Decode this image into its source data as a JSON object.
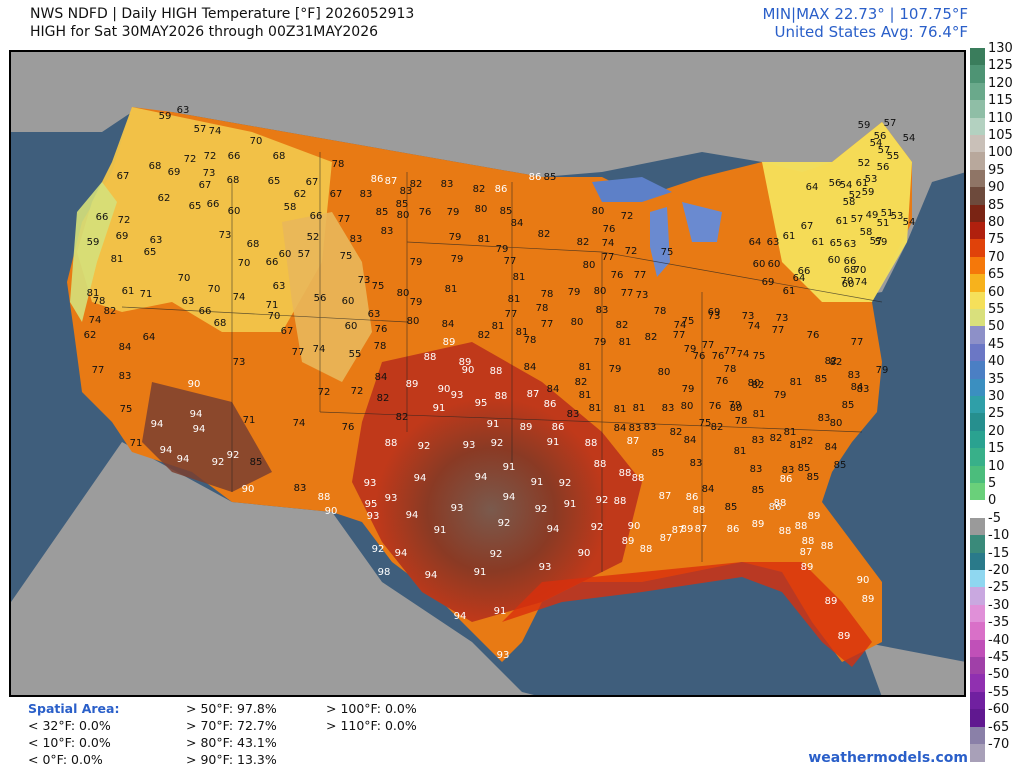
{
  "header": {
    "line1": "NWS NDFD | Daily HIGH Temperature [°F]  2026052913",
    "line2": "HIGH for Sat 30MAY2026 through 00Z31MAY2026",
    "minmax": "MIN|MAX 22.73° | 107.75°F",
    "avg": "United States Avg: 76.4°F"
  },
  "legend": {
    "ticks": [
      "130",
      "125",
      "120",
      "115",
      "110",
      "105",
      "100",
      "95",
      "90",
      "85",
      "80",
      "75",
      "70",
      "65",
      "60",
      "55",
      "50",
      "45",
      "40",
      "35",
      "30",
      "25",
      "20",
      "15",
      "10",
      "5",
      "0",
      "-5",
      "-10",
      "-15",
      "-20",
      "-25",
      "-30",
      "-35",
      "-40",
      "-45",
      "-50",
      "-55",
      "-60",
      "-65",
      "-70"
    ],
    "colors": [
      "#3a7d5c",
      "#4e9474",
      "#6aa98b",
      "#8fbea6",
      "#b3d1c0",
      "#c9c0b8",
      "#b8a89c",
      "#8f7566",
      "#6d4a3c",
      "#7a2414",
      "#b0200e",
      "#e0420a",
      "#f5780a",
      "#f7b21c",
      "#f5e05a",
      "#d9e07c",
      "#8d90c8",
      "#6b77c5",
      "#4b7fc4",
      "#3b8fc0",
      "#2f9fa8",
      "#268f8e",
      "#2aa290",
      "#38b089",
      "#4bbd7c",
      "#6ad07a",
      "#ffffff",
      "#9a9a9a",
      "#3a8a7a",
      "#2a7a8a",
      "#8fd7f0",
      "#c9a8e0",
      "#e090d8",
      "#d970c8",
      "#c050b8",
      "#a040a8",
      "#9030b0",
      "#7020a0",
      "#601890",
      "#8a80a8",
      "#a8a0b8"
    ]
  },
  "stats": {
    "title": "Spatial Area:",
    "col1": [
      "< 32°F: 0.0%",
      "< 10°F: 0.0%",
      "< 0°F: 0.0%"
    ],
    "col2": [
      "> 50°F: 97.8%",
      "> 70°F: 72.7%",
      "> 80°F: 43.1%",
      "> 90°F: 13.3%"
    ],
    "col3": [
      "> 100°F: 0.0%",
      "> 110°F: 0.0%"
    ]
  },
  "credit": "weathermodels.com",
  "map_labels": [
    [
      "59",
      163,
      117
    ],
    [
      "63",
      181,
      111
    ],
    [
      "74",
      213,
      132
    ],
    [
      "70",
      254,
      142
    ],
    [
      "57",
      198,
      130
    ],
    [
      "72",
      188,
      160
    ],
    [
      "72",
      208,
      157
    ],
    [
      "66",
      232,
      157
    ],
    [
      "68",
      277,
      157
    ],
    [
      "78",
      336,
      165
    ],
    [
      "86",
      375,
      180
    ],
    [
      "87",
      389,
      182
    ],
    [
      "82",
      414,
      185
    ],
    [
      "83",
      445,
      185
    ],
    [
      "82",
      477,
      190
    ],
    [
      "86",
      499,
      190
    ],
    [
      "86",
      533,
      178
    ],
    [
      "85",
      548,
      178
    ],
    [
      "68",
      153,
      167
    ],
    [
      "69",
      172,
      173
    ],
    [
      "67",
      203,
      186
    ],
    [
      "67",
      121,
      177
    ],
    [
      "73",
      207,
      174
    ],
    [
      "68",
      231,
      181
    ],
    [
      "65",
      272,
      182
    ],
    [
      "67",
      310,
      183
    ],
    [
      "67",
      334,
      195
    ],
    [
      "83",
      364,
      195
    ],
    [
      "83",
      404,
      192
    ],
    [
      "85",
      400,
      205
    ],
    [
      "80",
      401,
      216
    ],
    [
      "76",
      423,
      213
    ],
    [
      "79",
      451,
      213
    ],
    [
      "80",
      479,
      210
    ],
    [
      "85",
      504,
      212
    ],
    [
      "84",
      515,
      224
    ],
    [
      "62",
      162,
      199
    ],
    [
      "65",
      193,
      207
    ],
    [
      "66",
      211,
      205
    ],
    [
      "60",
      232,
      212
    ],
    [
      "58",
      288,
      208
    ],
    [
      "62",
      298,
      195
    ],
    [
      "66",
      314,
      217
    ],
    [
      "77",
      342,
      220
    ],
    [
      "85",
      380,
      213
    ],
    [
      "83",
      385,
      232
    ],
    [
      "79",
      453,
      238
    ],
    [
      "81",
      482,
      240
    ],
    [
      "79",
      500,
      250
    ],
    [
      "77",
      508,
      262
    ],
    [
      "82",
      542,
      235
    ],
    [
      "82",
      581,
      243
    ],
    [
      "76",
      607,
      230
    ],
    [
      "80",
      596,
      212
    ],
    [
      "72",
      625,
      217
    ],
    [
      "66",
      100,
      218
    ],
    [
      "72",
      122,
      221
    ],
    [
      "69",
      120,
      237
    ],
    [
      "63",
      154,
      241
    ],
    [
      "73",
      223,
      236
    ],
    [
      "68",
      251,
      245
    ],
    [
      "65",
      148,
      253
    ],
    [
      "52",
      311,
      238
    ],
    [
      "57",
      302,
      255
    ],
    [
      "60",
      283,
      255
    ],
    [
      "75",
      344,
      257
    ],
    [
      "83",
      354,
      240
    ],
    [
      "79",
      414,
      263
    ],
    [
      "79",
      455,
      260
    ],
    [
      "81",
      517,
      278
    ],
    [
      "80",
      587,
      266
    ],
    [
      "74",
      606,
      244
    ],
    [
      "77",
      606,
      258
    ],
    [
      "72",
      629,
      252
    ],
    [
      "59",
      91,
      243
    ],
    [
      "81",
      115,
      260
    ],
    [
      "70",
      182,
      279
    ],
    [
      "70",
      242,
      264
    ],
    [
      "66",
      270,
      263
    ],
    [
      "73",
      362,
      281
    ],
    [
      "75",
      376,
      287
    ],
    [
      "81",
      449,
      290
    ],
    [
      "78",
      545,
      295
    ],
    [
      "79",
      572,
      293
    ],
    [
      "80",
      598,
      292
    ],
    [
      "77",
      625,
      294
    ],
    [
      "76",
      615,
      276
    ],
    [
      "77",
      638,
      276
    ],
    [
      "73",
      640,
      296
    ],
    [
      "75",
      665,
      253
    ],
    [
      "81",
      91,
      294
    ],
    [
      "61",
      126,
      292
    ],
    [
      "71",
      144,
      295
    ],
    [
      "63",
      186,
      302
    ],
    [
      "70",
      212,
      290
    ],
    [
      "74",
      237,
      298
    ],
    [
      "63",
      277,
      287
    ],
    [
      "56",
      318,
      299
    ],
    [
      "60",
      346,
      302
    ],
    [
      "80",
      401,
      294
    ],
    [
      "79",
      414,
      303
    ],
    [
      "81",
      512,
      300
    ],
    [
      "77",
      509,
      315
    ],
    [
      "78",
      540,
      309
    ],
    [
      "80",
      575,
      323
    ],
    [
      "83",
      600,
      311
    ],
    [
      "82",
      620,
      326
    ],
    [
      "78",
      97,
      302
    ],
    [
      "82",
      108,
      312
    ],
    [
      "74",
      93,
      321
    ],
    [
      "66",
      203,
      312
    ],
    [
      "68",
      218,
      324
    ],
    [
      "71",
      270,
      306
    ],
    [
      "70",
      272,
      317
    ],
    [
      "63",
      372,
      315
    ],
    [
      "80",
      411,
      322
    ],
    [
      "84",
      446,
      325
    ],
    [
      "82",
      482,
      336
    ],
    [
      "81",
      520,
      333
    ],
    [
      "77",
      545,
      325
    ],
    [
      "81",
      496,
      327
    ],
    [
      "78",
      658,
      312
    ],
    [
      "75",
      686,
      322
    ],
    [
      "74",
      678,
      326
    ],
    [
      "69",
      712,
      313
    ],
    [
      "73",
      712,
      317
    ],
    [
      "62",
      88,
      336
    ],
    [
      "84",
      123,
      348
    ],
    [
      "64",
      147,
      338
    ],
    [
      "67",
      285,
      332
    ],
    [
      "60",
      349,
      327
    ],
    [
      "76",
      379,
      330
    ],
    [
      "89",
      447,
      343
    ],
    [
      "78",
      528,
      341
    ],
    [
      "79",
      598,
      343
    ],
    [
      "81",
      623,
      343
    ],
    [
      "82",
      649,
      338
    ],
    [
      "77",
      677,
      336
    ],
    [
      "79",
      688,
      350
    ],
    [
      "77",
      706,
      346
    ],
    [
      "73",
      746,
      317
    ],
    [
      "69",
      766,
      283
    ],
    [
      "61",
      787,
      292
    ],
    [
      "66",
      802,
      272
    ],
    [
      "77",
      96,
      371
    ],
    [
      "83",
      123,
      377
    ],
    [
      "77",
      296,
      353
    ],
    [
      "74",
      317,
      350
    ],
    [
      "55",
      353,
      355
    ],
    [
      "78",
      378,
      347
    ],
    [
      "88",
      428,
      358
    ],
    [
      "89",
      463,
      363
    ],
    [
      "90",
      466,
      371
    ],
    [
      "88",
      494,
      372
    ],
    [
      "84",
      528,
      368
    ],
    [
      "81",
      583,
      368
    ],
    [
      "79",
      613,
      370
    ],
    [
      "80",
      662,
      373
    ],
    [
      "76",
      697,
      357
    ],
    [
      "76",
      716,
      357
    ],
    [
      "77",
      728,
      352
    ],
    [
      "74",
      741,
      355
    ],
    [
      "75",
      757,
      357
    ],
    [
      "90",
      192,
      385
    ],
    [
      "73",
      237,
      363
    ],
    [
      "72",
      322,
      393
    ],
    [
      "72",
      355,
      392
    ],
    [
      "84",
      379,
      378
    ],
    [
      "89",
      410,
      385
    ],
    [
      "90",
      442,
      390
    ],
    [
      "93",
      455,
      396
    ],
    [
      "95",
      479,
      404
    ],
    [
      "88",
      499,
      397
    ],
    [
      "87",
      531,
      395
    ],
    [
      "84",
      551,
      390
    ],
    [
      "82",
      579,
      383
    ],
    [
      "81",
      583,
      396
    ],
    [
      "79",
      686,
      390
    ],
    [
      "76",
      720,
      382
    ],
    [
      "78",
      728,
      370
    ],
    [
      "80",
      752,
      384
    ],
    [
      "81",
      794,
      383
    ],
    [
      "75",
      124,
      410
    ],
    [
      "94",
      194,
      415
    ],
    [
      "71",
      247,
      421
    ],
    [
      "74",
      297,
      424
    ],
    [
      "82",
      381,
      399
    ],
    [
      "82",
      400,
      418
    ],
    [
      "91",
      437,
      409
    ],
    [
      "91",
      491,
      425
    ],
    [
      "86",
      548,
      405
    ],
    [
      "83",
      571,
      415
    ],
    [
      "81",
      593,
      409
    ],
    [
      "81",
      618,
      410
    ],
    [
      "81",
      637,
      409
    ],
    [
      "83",
      666,
      409
    ],
    [
      "80",
      685,
      407
    ],
    [
      "76",
      713,
      407
    ],
    [
      "79",
      733,
      406
    ],
    [
      "82",
      756,
      386
    ],
    [
      "79",
      778,
      396
    ],
    [
      "94",
      155,
      425
    ],
    [
      "94",
      197,
      430
    ],
    [
      "76",
      346,
      428
    ],
    [
      "88",
      389,
      444
    ],
    [
      "92",
      422,
      447
    ],
    [
      "93",
      467,
      446
    ],
    [
      "92",
      495,
      444
    ],
    [
      "89",
      524,
      428
    ],
    [
      "86",
      556,
      428
    ],
    [
      "84",
      618,
      429
    ],
    [
      "83",
      633,
      429
    ],
    [
      "83",
      648,
      428
    ],
    [
      "82",
      674,
      433
    ],
    [
      "84",
      688,
      441
    ],
    [
      "82",
      715,
      428
    ],
    [
      "75",
      703,
      424
    ],
    [
      "80",
      734,
      409
    ],
    [
      "78",
      739,
      422
    ],
    [
      "81",
      757,
      415
    ],
    [
      "71",
      134,
      444
    ],
    [
      "94",
      164,
      451
    ],
    [
      "92",
      231,
      456
    ],
    [
      "85",
      254,
      463
    ],
    [
      "94",
      181,
      460
    ],
    [
      "92",
      216,
      463
    ],
    [
      "91",
      507,
      468
    ],
    [
      "91",
      551,
      443
    ],
    [
      "88",
      589,
      444
    ],
    [
      "87",
      631,
      442
    ],
    [
      "85",
      656,
      454
    ],
    [
      "81",
      738,
      452
    ],
    [
      "83",
      756,
      441
    ],
    [
      "82",
      774,
      439
    ],
    [
      "81",
      788,
      433
    ],
    [
      "82",
      805,
      442
    ],
    [
      "81",
      794,
      446
    ],
    [
      "83",
      822,
      419
    ],
    [
      "80",
      834,
      424
    ],
    [
      "90",
      246,
      490
    ],
    [
      "83",
      298,
      489
    ],
    [
      "88",
      322,
      498
    ],
    [
      "93",
      368,
      484
    ],
    [
      "94",
      418,
      479
    ],
    [
      "94",
      479,
      478
    ],
    [
      "91",
      535,
      483
    ],
    [
      "92",
      563,
      484
    ],
    [
      "88",
      598,
      465
    ],
    [
      "88",
      623,
      474
    ],
    [
      "88",
      636,
      479
    ],
    [
      "83",
      694,
      464
    ],
    [
      "83",
      754,
      470
    ],
    [
      "83",
      786,
      471
    ],
    [
      "85",
      802,
      469
    ],
    [
      "86",
      784,
      480
    ],
    [
      "85",
      811,
      478
    ],
    [
      "84",
      829,
      448
    ],
    [
      "85",
      838,
      466
    ],
    [
      "90",
      329,
      512
    ],
    [
      "95",
      369,
      505
    ],
    [
      "93",
      389,
      499
    ],
    [
      "93",
      371,
      517
    ],
    [
      "94",
      410,
      516
    ],
    [
      "93",
      455,
      509
    ],
    [
      "94",
      507,
      498
    ],
    [
      "92",
      539,
      510
    ],
    [
      "91",
      568,
      505
    ],
    [
      "92",
      600,
      501
    ],
    [
      "88",
      618,
      502
    ],
    [
      "87",
      663,
      497
    ],
    [
      "86",
      690,
      498
    ],
    [
      "88",
      697,
      511
    ],
    [
      "84",
      706,
      490
    ],
    [
      "89",
      685,
      530
    ],
    [
      "85",
      729,
      508
    ],
    [
      "85",
      756,
      491
    ],
    [
      "85",
      773,
      508
    ],
    [
      "92",
      376,
      550
    ],
    [
      "94",
      399,
      554
    ],
    [
      "91",
      438,
      531
    ],
    [
      "92",
      502,
      524
    ],
    [
      "94",
      551,
      530
    ],
    [
      "92",
      595,
      528
    ],
    [
      "90",
      632,
      527
    ],
    [
      "87",
      676,
      531
    ],
    [
      "89",
      626,
      542
    ],
    [
      "88",
      644,
      550
    ],
    [
      "87",
      664,
      539
    ],
    [
      "87",
      699,
      530
    ],
    [
      "86",
      731,
      530
    ],
    [
      "89",
      756,
      525
    ],
    [
      "88",
      783,
      532
    ],
    [
      "88",
      799,
      527
    ],
    [
      "88",
      806,
      542
    ],
    [
      "87",
      804,
      553
    ],
    [
      "86",
      773,
      508
    ],
    [
      "98",
      382,
      573
    ],
    [
      "94",
      429,
      576
    ],
    [
      "92",
      494,
      555
    ],
    [
      "91",
      478,
      573
    ],
    [
      "93",
      543,
      568
    ],
    [
      "90",
      582,
      554
    ],
    [
      "89",
      805,
      568
    ],
    [
      "88",
      825,
      547
    ],
    [
      "89",
      812,
      517
    ],
    [
      "88",
      778,
      504
    ],
    [
      "90",
      861,
      581
    ],
    [
      "89",
      866,
      600
    ],
    [
      "89",
      829,
      602
    ],
    [
      "89",
      842,
      637
    ],
    [
      "94",
      458,
      617
    ],
    [
      "91",
      498,
      612
    ],
    [
      "93",
      501,
      656
    ],
    [
      "57",
      888,
      124
    ],
    [
      "59",
      862,
      126
    ],
    [
      "56",
      878,
      137
    ],
    [
      "57",
      882,
      151
    ],
    [
      "54",
      907,
      139
    ],
    [
      "54",
      874,
      144
    ],
    [
      "56",
      881,
      168
    ],
    [
      "55",
      891,
      157
    ],
    [
      "52",
      862,
      164
    ],
    [
      "54",
      844,
      186
    ],
    [
      "61",
      860,
      184
    ],
    [
      "53",
      869,
      180
    ],
    [
      "56",
      833,
      184
    ],
    [
      "64",
      810,
      188
    ],
    [
      "59",
      866,
      193
    ],
    [
      "58",
      847,
      203
    ],
    [
      "52",
      853,
      196
    ],
    [
      "49",
      870,
      216
    ],
    [
      "51",
      885,
      214
    ],
    [
      "53",
      895,
      217
    ],
    [
      "54",
      907,
      223
    ],
    [
      "61",
      840,
      222
    ],
    [
      "57",
      855,
      220
    ],
    [
      "51",
      881,
      224
    ],
    [
      "58",
      864,
      233
    ],
    [
      "57",
      874,
      242
    ],
    [
      "59",
      879,
      243
    ],
    [
      "63",
      848,
      245
    ],
    [
      "61",
      787,
      237
    ],
    [
      "67",
      805,
      227
    ],
    [
      "63",
      771,
      243
    ],
    [
      "64",
      753,
      243
    ],
    [
      "60",
      757,
      265
    ],
    [
      "60",
      772,
      265
    ],
    [
      "64",
      797,
      279
    ],
    [
      "60",
      832,
      261
    ],
    [
      "66",
      848,
      262
    ],
    [
      "68",
      848,
      271
    ],
    [
      "70",
      858,
      271
    ],
    [
      "60",
      846,
      285
    ],
    [
      "70",
      845,
      282
    ],
    [
      "74",
      859,
      283
    ],
    [
      "61",
      816,
      243
    ],
    [
      "65",
      834,
      244
    ],
    [
      "73",
      780,
      319
    ],
    [
      "76",
      811,
      336
    ],
    [
      "74",
      752,
      327
    ],
    [
      "77",
      776,
      331
    ],
    [
      "82",
      834,
      363
    ],
    [
      "85",
      819,
      380
    ],
    [
      "83",
      852,
      376
    ],
    [
      "84",
      855,
      388
    ],
    [
      "83",
      861,
      390
    ],
    [
      "79",
      880,
      371
    ],
    [
      "77",
      855,
      343
    ],
    [
      "85",
      846,
      406
    ],
    [
      "82",
      829,
      362
    ]
  ]
}
